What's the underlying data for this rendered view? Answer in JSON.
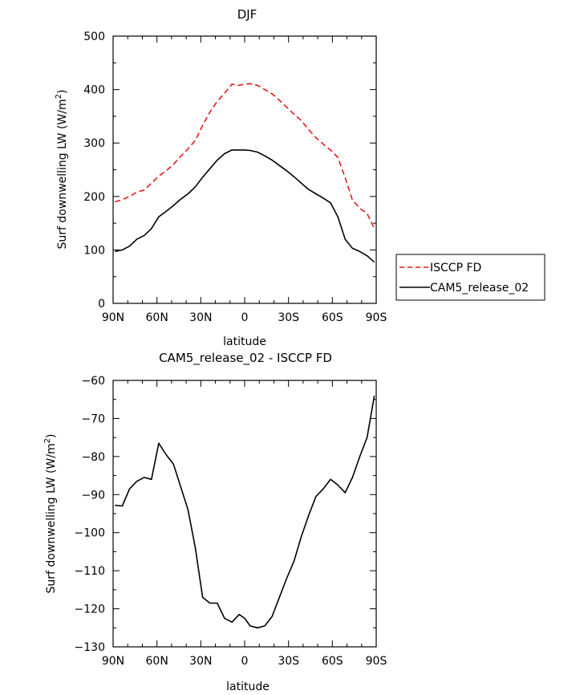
{
  "chart_data": [
    {
      "type": "line",
      "title": "DJF",
      "xlabel": "latitude",
      "ylabel": "Surf downwelling LW (W/m",
      "ylabel_sup": "2",
      "ylabel_end": ")",
      "xlim": [
        90,
        -90
      ],
      "ylim": [
        0,
        500
      ],
      "xticks": [
        90,
        60,
        30,
        0,
        -30,
        -60,
        -90
      ],
      "xtick_labels": [
        "90N",
        "60N",
        "30N",
        "0",
        "30S",
        "60S",
        "90S"
      ],
      "yticks": [
        0,
        100,
        200,
        300,
        400,
        500
      ],
      "ytick_labels": [
        "0",
        "100",
        "200",
        "300",
        "400",
        "500"
      ],
      "legend": "outside-right",
      "series": [
        {
          "name": "ISCCP FD",
          "color": "#e41a1c",
          "dash": "dashed",
          "x": [
            88.75,
            83.75,
            78.75,
            73.75,
            68.75,
            63.75,
            58.75,
            53.75,
            48.75,
            43.75,
            38.75,
            33.75,
            28.75,
            23.75,
            18.75,
            13.75,
            8.75,
            3.75,
            0,
            -3.75,
            -8.75,
            -13.75,
            -18.75,
            -23.75,
            -28.75,
            -33.75,
            -38.75,
            -43.75,
            -48.75,
            -53.75,
            -58.75,
            -63.75,
            -68.75,
            -73.75,
            -78.75,
            -83.75,
            -88.75
          ],
          "y": [
            190,
            194,
            200,
            208,
            212,
            225,
            238,
            248,
            260,
            275,
            289,
            305,
            333,
            358,
            378,
            393,
            410,
            408,
            410,
            411,
            408,
            400,
            392,
            380,
            367,
            354,
            342,
            325,
            310,
            298,
            287,
            273,
            235,
            193,
            178,
            168,
            140
          ]
        },
        {
          "name": "CAM5_release_02",
          "color": "#000000",
          "dash": "solid",
          "x": [
            88.75,
            83.75,
            78.75,
            73.75,
            68.75,
            63.75,
            58.75,
            53.75,
            48.75,
            43.75,
            38.75,
            33.75,
            28.75,
            23.75,
            18.75,
            13.75,
            8.75,
            3.75,
            0,
            -3.75,
            -8.75,
            -13.75,
            -18.75,
            -23.75,
            -28.75,
            -33.75,
            -38.75,
            -43.75,
            -48.75,
            -53.75,
            -58.75,
            -63.75,
            -68.75,
            -73.75,
            -78.75,
            -83.75,
            -88.75
          ],
          "y": [
            97,
            100,
            107,
            120,
            127,
            140,
            162,
            172,
            183,
            195,
            205,
            218,
            236,
            252,
            268,
            280,
            287,
            287,
            287,
            286,
            283,
            276,
            268,
            258,
            248,
            237,
            225,
            213,
            205,
            197,
            188,
            162,
            120,
            103,
            97,
            89,
            77
          ]
        }
      ]
    },
    {
      "type": "line",
      "title": "CAM5_release_02 - ISCCP FD",
      "xlabel": "latitude",
      "ylabel": "Surf downwelling LW (W/m",
      "ylabel_sup": "2",
      "ylabel_end": ")",
      "xlim": [
        90,
        -90
      ],
      "ylim": [
        -130,
        -60
      ],
      "xticks": [
        90,
        60,
        30,
        0,
        -30,
        -60,
        -90
      ],
      "xtick_labels": [
        "90N",
        "60N",
        "30N",
        "0",
        "30S",
        "60S",
        "90S"
      ],
      "yticks": [
        -130,
        -120,
        -110,
        -100,
        -90,
        -80,
        -70,
        -60
      ],
      "ytick_labels": [
        "−130",
        "−120",
        "−110",
        "−100",
        "−90",
        "−80",
        "−70",
        "−60"
      ],
      "series": [
        {
          "color": "#000000",
          "dash": "solid",
          "x": [
            88.75,
            83.75,
            78.75,
            73.75,
            68.75,
            63.75,
            58.75,
            53.75,
            48.75,
            43.75,
            38.75,
            33.75,
            28.75,
            23.75,
            18.75,
            13.75,
            8.75,
            3.75,
            0,
            -3.75,
            -8.75,
            -13.75,
            -18.75,
            -23.75,
            -28.75,
            -33.75,
            -38.75,
            -43.75,
            -48.75,
            -53.75,
            -58.75,
            -63.75,
            -68.75,
            -73.75,
            -78.75,
            -83.75,
            -88.75
          ],
          "y": [
            -92.8,
            -93,
            -88.5,
            -86.5,
            -85.5,
            -86,
            -76.5,
            -79.5,
            -82,
            -88,
            -94,
            -104,
            -117,
            -118.5,
            -118.5,
            -122.5,
            -123.5,
            -121.5,
            -122.5,
            -124.5,
            -125,
            -124.5,
            -122,
            -117,
            -112,
            -107.5,
            -101,
            -95.5,
            -90.5,
            -88.5,
            -86,
            -87.5,
            -89.5,
            -85.5,
            -80,
            -75,
            -64
          ]
        }
      ]
    }
  ]
}
